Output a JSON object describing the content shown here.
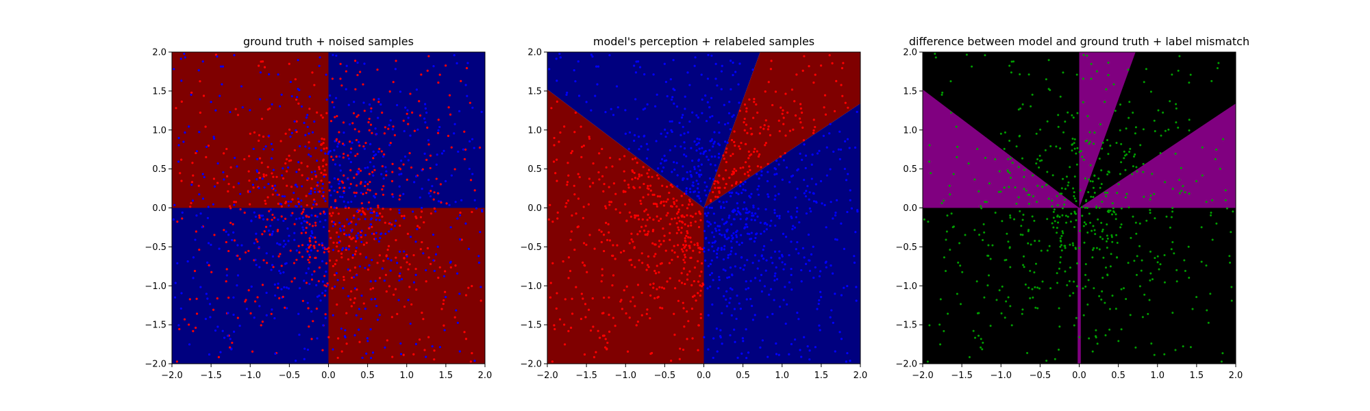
{
  "colors": {
    "background": "#ffffff",
    "region_red": "#7f0000",
    "region_blue": "#00007f",
    "region_black": "#000000",
    "region_purple": "#800080",
    "point_red": "#ff0000",
    "point_blue": "#0000ff",
    "point_green": "#00a000"
  },
  "chart_data": [
    {
      "type": "scatter",
      "title": "ground truth + noised samples",
      "xlim": [
        -2.0,
        2.0
      ],
      "ylim": [
        -2.0,
        2.0
      ],
      "x_ticks": [
        "−2.0",
        "−1.5",
        "−1.0",
        "−0.5",
        "0.0",
        "0.5",
        "1.0",
        "1.5",
        "2.0"
      ],
      "y_ticks": [
        "−2.0",
        "−1.5",
        "−1.0",
        "−0.5",
        "0.0",
        "0.5",
        "1.0",
        "1.5",
        "2.0"
      ],
      "background_regions": "XOR quadrants: upper-left and lower-right red, upper-right and lower-left blue",
      "series": [
        {
          "color": "#ff0000",
          "approx_count": 700,
          "distribution": "uniform over [-2,2]^2, denser near origin"
        },
        {
          "color": "#0000ff",
          "approx_count": 700,
          "distribution": "uniform over [-2,2]^2, denser near origin"
        }
      ]
    },
    {
      "type": "scatter",
      "title": "model's perception + relabeled samples",
      "xlim": [
        -2.0,
        2.0
      ],
      "ylim": [
        -2.0,
        2.0
      ],
      "x_ticks": [
        "−2.0",
        "−1.5",
        "−1.0",
        "−0.5",
        "0.0",
        "0.5",
        "1.0",
        "1.5",
        "2.0"
      ],
      "y_ticks": [
        "−2.0",
        "−1.5",
        "−1.0",
        "−0.5",
        "0.0",
        "0.5",
        "1.0",
        "1.5",
        "2.0"
      ],
      "background_regions": "model decision regions: blue top wedge, red upper-right wedge, blue right wedge, red left wedge, blue lower-right quadrant",
      "series": [
        {
          "color": "#ff0000",
          "approx_count": 700,
          "distribution": "points in predicted red regions"
        },
        {
          "color": "#0000ff",
          "approx_count": 700,
          "distribution": "points in predicted blue regions"
        }
      ]
    },
    {
      "type": "scatter",
      "title": "difference between model and ground truth + label mismatch",
      "xlim": [
        -2.0,
        2.0
      ],
      "ylim": [
        -2.0,
        2.0
      ],
      "x_ticks": [
        "−2.0",
        "−1.5",
        "−1.0",
        "−0.5",
        "0.0",
        "0.5",
        "1.0",
        "1.5",
        "2.0"
      ],
      "y_ticks": [
        "−2.0",
        "−1.5",
        "−1.0",
        "−0.5",
        "0.0",
        "0.5",
        "1.0",
        "1.5",
        "2.0"
      ],
      "background_regions": "black where model agrees with ground truth, purple where it differs",
      "series": [
        {
          "color": "#00a000",
          "approx_count": 550,
          "distribution": "mismatched samples"
        }
      ]
    }
  ]
}
